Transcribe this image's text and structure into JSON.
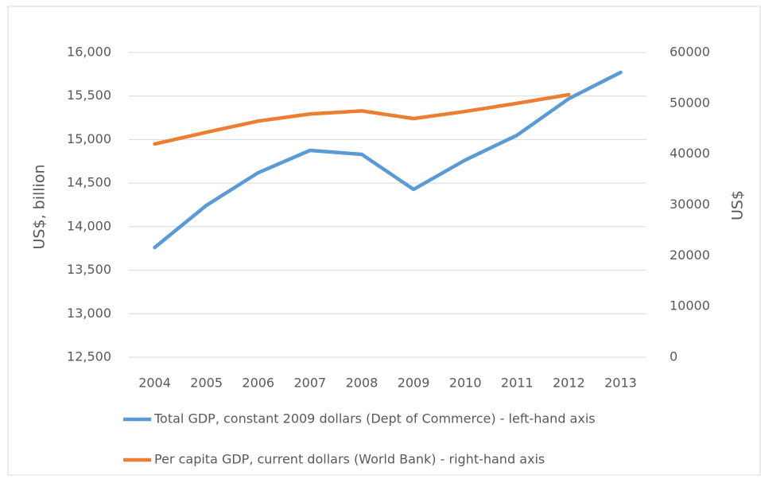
{
  "chart_data": {
    "type": "line",
    "y_label": "US$, billion",
    "y2_label": "US$",
    "categories": [
      "2004",
      "2005",
      "2006",
      "2007",
      "2008",
      "2009",
      "2010",
      "2011",
      "2012",
      "2013"
    ],
    "series": [
      {
        "name": "Total GDP, constant 2009 dollars (Dept of Commerce) - left-hand axis",
        "color": "#5b9bd5",
        "values": [
          13761,
          14245,
          14620,
          14876,
          14830,
          14428,
          14766,
          15050,
          15470,
          15772
        ]
      },
      {
        "name": "Per capita GDP, current dollars (World Bank) - right-hand axis",
        "color": "#ed7d31",
        "axis": "y2",
        "values": [
          42000,
          44300,
          46500,
          47900,
          48500,
          47000,
          48400,
          50000,
          51700,
          null
        ]
      }
    ],
    "ylim": [
      12500,
      16000
    ],
    "yticks": [
      {
        "value": 12500,
        "label": "12,500"
      },
      {
        "value": 13000,
        "label": "13,000"
      },
      {
        "value": 13500,
        "label": "13,500"
      },
      {
        "value": 14000,
        "label": "14,000"
      },
      {
        "value": 14500,
        "label": "14,500"
      },
      {
        "value": 15000,
        "label": "15,000"
      },
      {
        "value": 15500,
        "label": "15,500"
      },
      {
        "value": 16000,
        "label": "16,000"
      }
    ],
    "y2lim": [
      0,
      60000
    ],
    "y2ticks": [
      0,
      10000,
      20000,
      30000,
      40000,
      50000,
      60000
    ],
    "grid": true,
    "legend": "bottom"
  }
}
